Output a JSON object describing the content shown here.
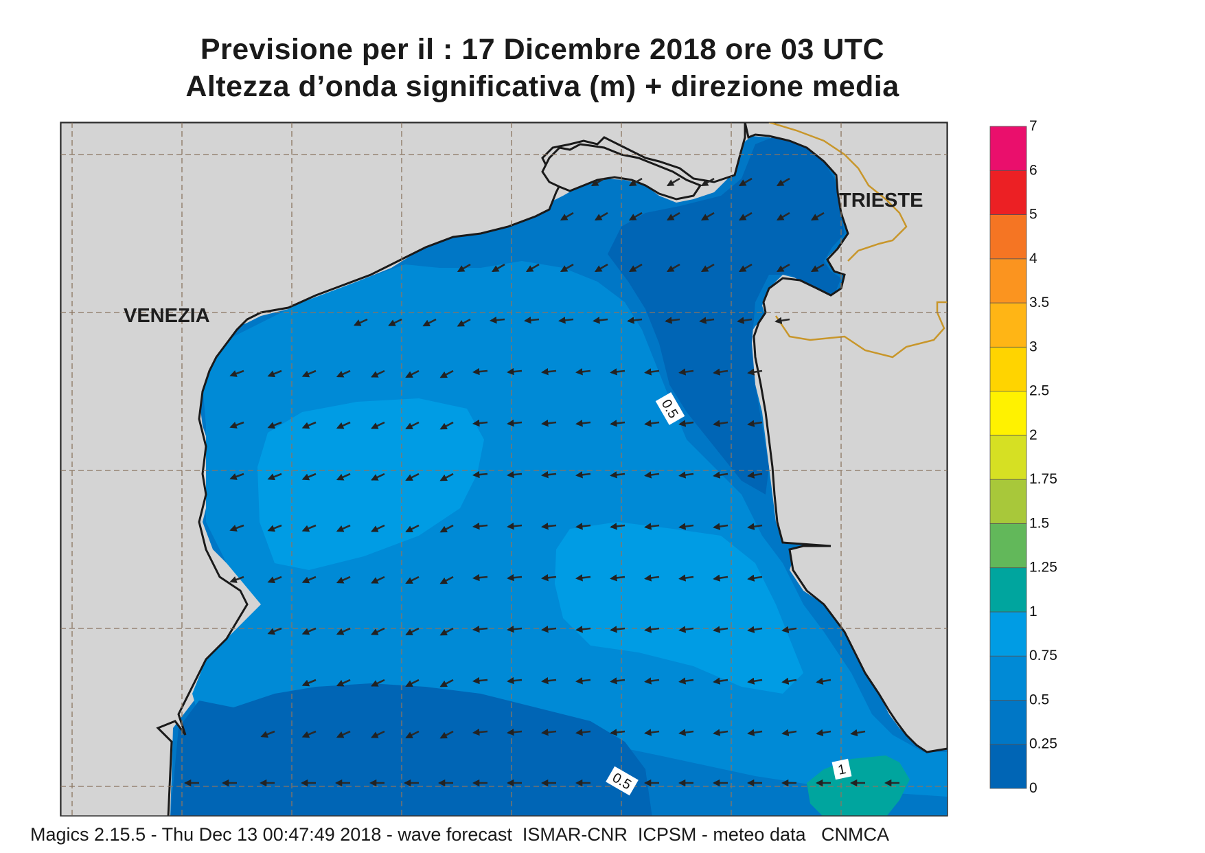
{
  "title": {
    "line1": "Previsione per il  :  17 Dicembre  2018   ore 03 UTC",
    "line2": "Altezza d’onda significativa (m) + direzione media"
  },
  "cities": {
    "venezia": "VENEZIA",
    "trieste": "TRIESTE"
  },
  "contour_labels": [
    "0.5",
    "0.5",
    "1"
  ],
  "legend": {
    "levels": [
      "0",
      "0.25",
      "0.5",
      "0.75",
      "1",
      "1.25",
      "1.5",
      "1.75",
      "2",
      "2.5",
      "3",
      "3.5",
      "4",
      "5",
      "6",
      "7"
    ],
    "colors": [
      "#0065b5",
      "#0077c6",
      "#008ad6",
      "#009ce4",
      "#00a59e",
      "#62b85a",
      "#a8c83a",
      "#d6e023",
      "#fff200",
      "#ffd400",
      "#ffb515",
      "#fb941f",
      "#f57523",
      "#ec2024",
      "#ea0f6c"
    ]
  },
  "sea_colors": {
    "band_0_25": "#0065b5",
    "band_0_25_0_5": "#0077c6",
    "band_0_5_0_75": "#008ad6",
    "band_0_75_1": "#009ce4",
    "band_1_1_25": "#00a59e",
    "land": "#d4d4d4",
    "border": "#c8962a"
  },
  "footer": "Magics 2.15.5 - Thu Dec 13 00:47:49 2018 - wave forecast  ISMAR-CNR  ICPSM - meteo data   CNMCA"
}
